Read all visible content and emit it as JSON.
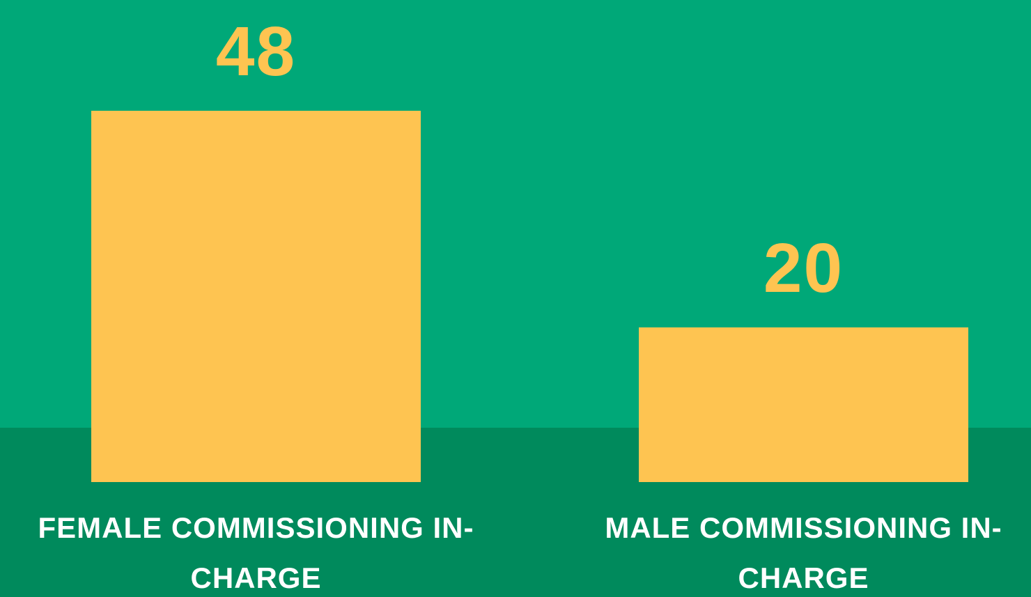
{
  "chart_data": {
    "type": "bar",
    "categories": [
      "FEMALE COMMISSIONING IN-CHARGE",
      "MALE COMMISSIONING IN-CHARGE"
    ],
    "values": [
      48,
      20
    ],
    "color": "#fec451"
  }
}
